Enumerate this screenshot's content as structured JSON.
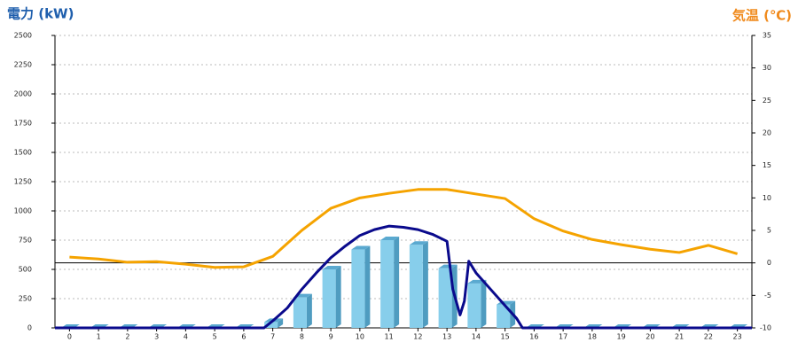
{
  "chart_data": {
    "type": "bar",
    "title": "電力 (kW)",
    "y2_title": "気温 (℃)",
    "categories": [
      "0",
      "1",
      "2",
      "3",
      "4",
      "5",
      "6",
      "7",
      "8",
      "9",
      "10",
      "11",
      "12",
      "13",
      "14",
      "15",
      "16",
      "17",
      "18",
      "19",
      "20",
      "21",
      "22",
      "23"
    ],
    "xlim": [
      -0.5,
      23.5
    ],
    "ylim": [
      0,
      2500
    ],
    "yticks": [
      0,
      250,
      500,
      750,
      1000,
      1250,
      1500,
      1750,
      2000,
      2250,
      2500
    ],
    "y2lim": [
      -10,
      35
    ],
    "y2ticks": [
      -10,
      -5,
      0,
      5,
      10,
      15,
      20,
      25,
      30,
      35
    ],
    "grid": true,
    "series": [
      {
        "type": "bar",
        "color": "#87ceeb",
        "values": [
          0,
          0,
          0,
          0,
          0,
          0,
          0,
          50,
          260,
          500,
          670,
          750,
          710,
          510,
          380,
          200,
          0,
          0,
          0,
          0,
          0,
          0,
          0,
          0
        ]
      },
      {
        "type": "line",
        "color": "#0a0a8c",
        "x": [
          -0.5,
          6.7,
          7,
          7.5,
          8,
          8.5,
          9,
          9.5,
          10,
          10.5,
          11,
          11.5,
          12,
          12.5,
          13,
          13.2,
          13.45,
          13.6,
          13.75,
          14,
          14.5,
          15,
          15.4,
          15.6,
          23.5
        ],
        "values": [
          0,
          0,
          60,
          170,
          330,
          470,
          600,
          700,
          790,
          840,
          870,
          860,
          840,
          800,
          740,
          330,
          110,
          230,
          570,
          470,
          330,
          190,
          80,
          0,
          0
        ]
      },
      {
        "type": "line",
        "axis": "y2",
        "color": "#f5a300",
        "values": [
          0.9,
          0.6,
          0.1,
          0.2,
          -0.2,
          -0.7,
          -0.6,
          1.0,
          5.0,
          8.4,
          10.0,
          10.7,
          11.3,
          11.3,
          10.6,
          9.9,
          6.8,
          4.9,
          3.6,
          2.8,
          2.1,
          1.6,
          2.7,
          1.4
        ]
      }
    ]
  }
}
